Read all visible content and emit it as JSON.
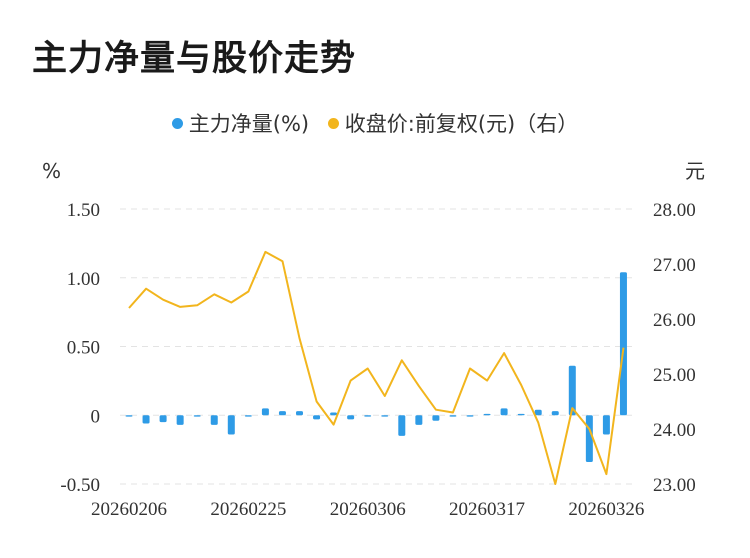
{
  "title": "主力净量与股价走势",
  "legend": {
    "items": [
      {
        "label": "主力净量(%)",
        "color": "#2e9be6"
      },
      {
        "label": "收盘价:前复权(元)（右）",
        "color": "#f2b51d"
      }
    ]
  },
  "chart_data": {
    "type": "bar+line",
    "left_unit": "%",
    "right_unit": "元",
    "y_left": {
      "min": -0.5,
      "max": 1.5,
      "ticks": [
        "-0.50",
        "0",
        "0.50",
        "1.00",
        "1.50"
      ],
      "tick_values": [
        -0.5,
        0,
        0.5,
        1.0,
        1.5
      ]
    },
    "y_right": {
      "min": 23.0,
      "max": 28.0,
      "ticks": [
        "23.00",
        "24.00",
        "25.00",
        "26.00",
        "27.00",
        "28.00"
      ],
      "tick_values": [
        23,
        24,
        25,
        26,
        27,
        28
      ]
    },
    "x_labels": [
      {
        "text": "20260206",
        "index": 0
      },
      {
        "text": "20260225",
        "index": 7
      },
      {
        "text": "20260306",
        "index": 14
      },
      {
        "text": "20260317",
        "index": 21
      },
      {
        "text": "20260326",
        "index": 28
      }
    ],
    "grid": true,
    "series": [
      {
        "name": "主力净量(%)",
        "type": "bar",
        "color": "#2e9be6",
        "values": [
          -0.01,
          -0.06,
          -0.05,
          -0.07,
          -0.01,
          -0.07,
          -0.14,
          -0.01,
          0.05,
          0.03,
          0.03,
          -0.03,
          0.02,
          -0.03,
          -0.01,
          -0.01,
          -0.15,
          -0.07,
          -0.04,
          -0.01,
          -0.01,
          0.01,
          0.05,
          0.01,
          0.04,
          0.03,
          0.36,
          -0.34,
          -0.14,
          1.04
        ]
      },
      {
        "name": "收盘价:前复权(元)（右）",
        "type": "line",
        "color": "#f2b51d",
        "values": [
          26.2,
          26.55,
          26.35,
          26.22,
          26.25,
          26.45,
          26.3,
          26.5,
          27.22,
          27.05,
          25.65,
          24.5,
          24.08,
          24.88,
          25.1,
          24.6,
          25.25,
          24.78,
          24.35,
          24.3,
          25.1,
          24.88,
          25.38,
          24.8,
          24.12,
          23.0,
          24.38,
          24.0,
          23.18,
          25.48
        ]
      }
    ]
  }
}
